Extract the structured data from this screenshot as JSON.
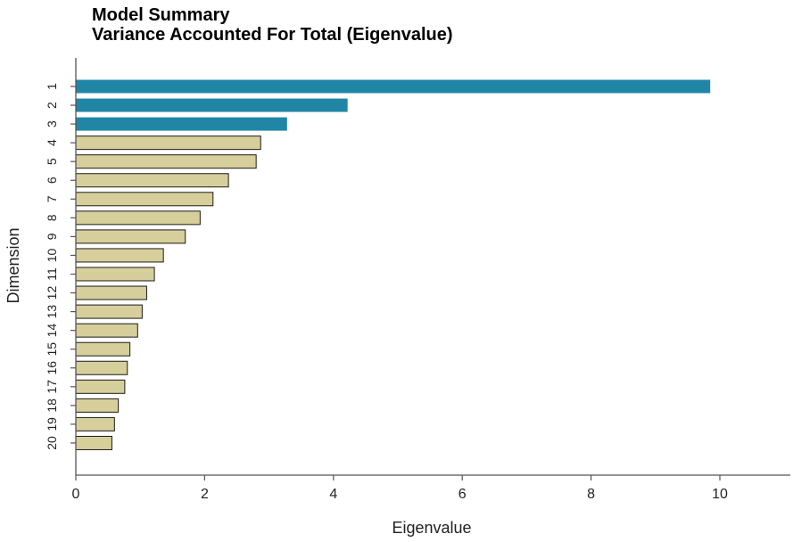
{
  "chart_data": {
    "type": "bar",
    "orientation": "horizontal",
    "title": "Model Summary",
    "subtitle": "Variance Accounted For Total (Eigenvalue)",
    "xlabel": "Eigenvalue",
    "ylabel": "Dimension",
    "xlim": [
      0,
      11
    ],
    "xticks": [
      "0",
      "2",
      "4",
      "6",
      "8",
      "10"
    ],
    "categories": [
      "1",
      "2",
      "3",
      "4",
      "5",
      "6",
      "7",
      "8",
      "9",
      "10",
      "11",
      "12",
      "13",
      "14",
      "15",
      "16",
      "17",
      "18",
      "19",
      "20"
    ],
    "values": [
      9.85,
      4.22,
      3.28,
      2.87,
      2.8,
      2.37,
      2.13,
      1.93,
      1.7,
      1.36,
      1.22,
      1.1,
      1.03,
      0.96,
      0.84,
      0.8,
      0.76,
      0.66,
      0.6,
      0.56
    ],
    "highlighted_count": 3,
    "colors": {
      "highlight": "#2186a6",
      "normal": "#d6cf9b",
      "edge": "#1a1a1a",
      "axis": "#555555"
    }
  }
}
